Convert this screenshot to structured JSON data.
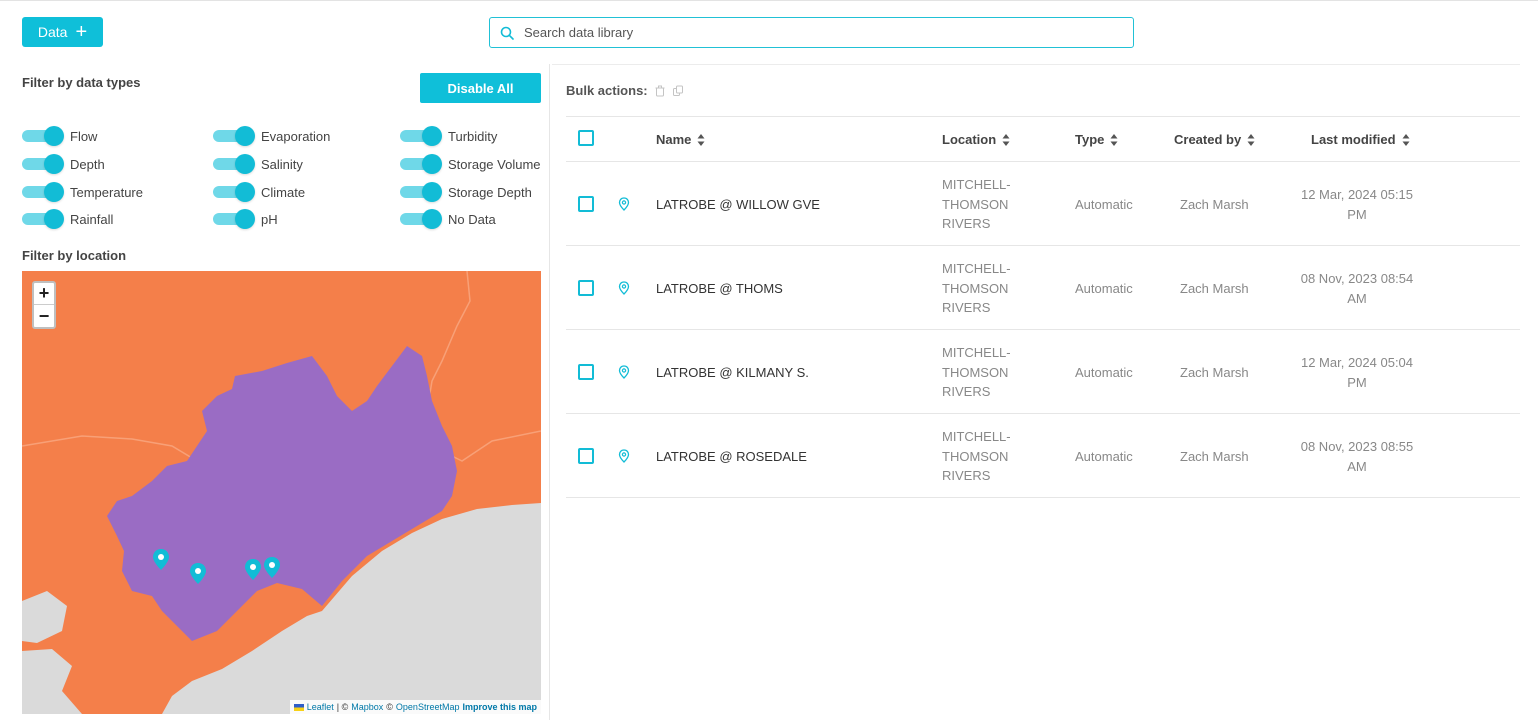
{
  "toolbar": {
    "data_button_label": "Data",
    "data_button_icon": "plus-icon",
    "search_placeholder": "Search data library",
    "search_value": ""
  },
  "filters": {
    "title": "Filter by data types",
    "disable_all_label": "Disable All",
    "types": [
      {
        "label": "Flow",
        "enabled": true
      },
      {
        "label": "Depth",
        "enabled": true
      },
      {
        "label": "Temperature",
        "enabled": true
      },
      {
        "label": "Rainfall",
        "enabled": true
      },
      {
        "label": "Evaporation",
        "enabled": true
      },
      {
        "label": "Salinity",
        "enabled": true
      },
      {
        "label": "Climate",
        "enabled": true
      },
      {
        "label": "pH",
        "enabled": true
      },
      {
        "label": "Turbidity",
        "enabled": true
      },
      {
        "label": "Storage Volume",
        "enabled": true
      },
      {
        "label": "Storage Depth",
        "enabled": true
      },
      {
        "label": "No Data",
        "enabled": true
      }
    ],
    "location_title": "Filter by location"
  },
  "map": {
    "zoom_in": "+",
    "zoom_out": "−",
    "attribution": {
      "leaflet": "Leaflet",
      "sep1": "| ©",
      "mapbox": "Mapbox",
      "sep2": "©",
      "osm": "OpenStreetMap",
      "improve": "Improve this map"
    },
    "colors": {
      "outer_region": "#f47f4a",
      "selected_region": "#9a6cc4",
      "sea": "#dadada",
      "marker": "#12bcd6"
    },
    "marker_count": 4
  },
  "bulk": {
    "label": "Bulk actions:",
    "actions": [
      "trash-icon",
      "copy-icon"
    ]
  },
  "table": {
    "columns": {
      "name": "Name",
      "location": "Location",
      "type": "Type",
      "created_by": "Created by",
      "last_modified": "Last modified"
    },
    "rows": [
      {
        "name": "LATROBE @ WILLOW GVE",
        "location": "MITCHELL-THOMSON RIVERS",
        "type": "Automatic",
        "created_by": "Zach Marsh",
        "modified": "12 Mar, 2024 05:15 PM"
      },
      {
        "name": "LATROBE @ THOMS",
        "location": "MITCHELL-THOMSON RIVERS",
        "type": "Automatic",
        "created_by": "Zach Marsh",
        "modified": "08 Nov, 2023 08:54 AM"
      },
      {
        "name": "LATROBE @ KILMANY S.",
        "location": "MITCHELL-THOMSON RIVERS",
        "type": "Automatic",
        "created_by": "Zach Marsh",
        "modified": "12 Mar, 2024 05:04 PM"
      },
      {
        "name": "LATROBE @ ROSEDALE",
        "location": "MITCHELL-THOMSON RIVERS",
        "type": "Automatic",
        "created_by": "Zach Marsh",
        "modified": "08 Nov, 2023 08:55 AM"
      }
    ]
  },
  "accent_color": "#12bcd6"
}
